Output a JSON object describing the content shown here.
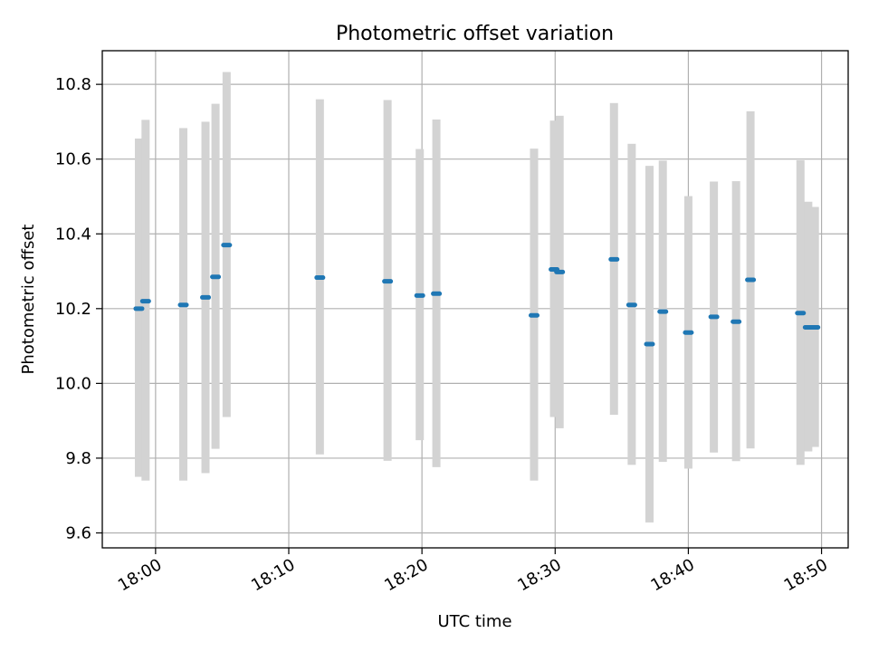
{
  "chart_data": {
    "type": "scatter",
    "title": "Photometric offset variation",
    "xlabel": "UTC time",
    "ylabel": "Photometric offset",
    "xlim": [
      "17:56",
      "18:52"
    ],
    "ylim": [
      9.56,
      10.89
    ],
    "x_ticks": [
      "18:00",
      "18:10",
      "18:20",
      "18:30",
      "18:40",
      "18:50"
    ],
    "y_ticks": [
      "9.6",
      "9.8",
      "10.0",
      "10.2",
      "10.4",
      "10.6",
      "10.8"
    ],
    "grid": true,
    "colors": {
      "point": "#1f77b4",
      "errorbar": "#d3d3d3",
      "grid": "#b0b0b0"
    },
    "points": [
      {
        "time": "17:58:45",
        "y": 10.2,
        "low": 9.75,
        "high": 10.655
      },
      {
        "time": "17:59:15",
        "y": 10.22,
        "low": 9.74,
        "high": 10.705
      },
      {
        "time": "18:02:05",
        "y": 10.21,
        "low": 9.74,
        "high": 10.683
      },
      {
        "time": "18:03:45",
        "y": 10.23,
        "low": 9.76,
        "high": 10.7
      },
      {
        "time": "18:04:30",
        "y": 10.285,
        "low": 9.825,
        "high": 10.748
      },
      {
        "time": "18:05:20",
        "y": 10.37,
        "low": 9.91,
        "high": 10.833
      },
      {
        "time": "18:12:20",
        "y": 10.283,
        "low": 9.81,
        "high": 10.76
      },
      {
        "time": "18:17:25",
        "y": 10.273,
        "low": 9.793,
        "high": 10.758
      },
      {
        "time": "18:19:50",
        "y": 10.235,
        "low": 9.848,
        "high": 10.627
      },
      {
        "time": "18:21:05",
        "y": 10.24,
        "low": 9.776,
        "high": 10.706
      },
      {
        "time": "18:28:25",
        "y": 10.182,
        "low": 9.74,
        "high": 10.628
      },
      {
        "time": "18:29:55",
        "y": 10.305,
        "low": 9.91,
        "high": 10.703
      },
      {
        "time": "18:30:20",
        "y": 10.298,
        "low": 9.88,
        "high": 10.716
      },
      {
        "time": "18:34:25",
        "y": 10.332,
        "low": 9.916,
        "high": 10.75
      },
      {
        "time": "18:35:45",
        "y": 10.21,
        "low": 9.782,
        "high": 10.641
      },
      {
        "time": "18:37:05",
        "y": 10.105,
        "low": 9.628,
        "high": 10.582
      },
      {
        "time": "18:38:05",
        "y": 10.192,
        "low": 9.79,
        "high": 10.596
      },
      {
        "time": "18:40:00",
        "y": 10.136,
        "low": 9.772,
        "high": 10.501
      },
      {
        "time": "18:41:55",
        "y": 10.178,
        "low": 9.815,
        "high": 10.54
      },
      {
        "time": "18:43:35",
        "y": 10.165,
        "low": 9.792,
        "high": 10.541
      },
      {
        "time": "18:44:40",
        "y": 10.277,
        "low": 9.826,
        "high": 10.728
      },
      {
        "time": "18:48:25",
        "y": 10.188,
        "low": 9.782,
        "high": 10.597
      },
      {
        "time": "18:49:00",
        "y": 10.15,
        "low": 9.818,
        "high": 10.486
      },
      {
        "time": "18:49:30",
        "y": 10.15,
        "low": 9.83,
        "high": 10.472
      }
    ]
  }
}
